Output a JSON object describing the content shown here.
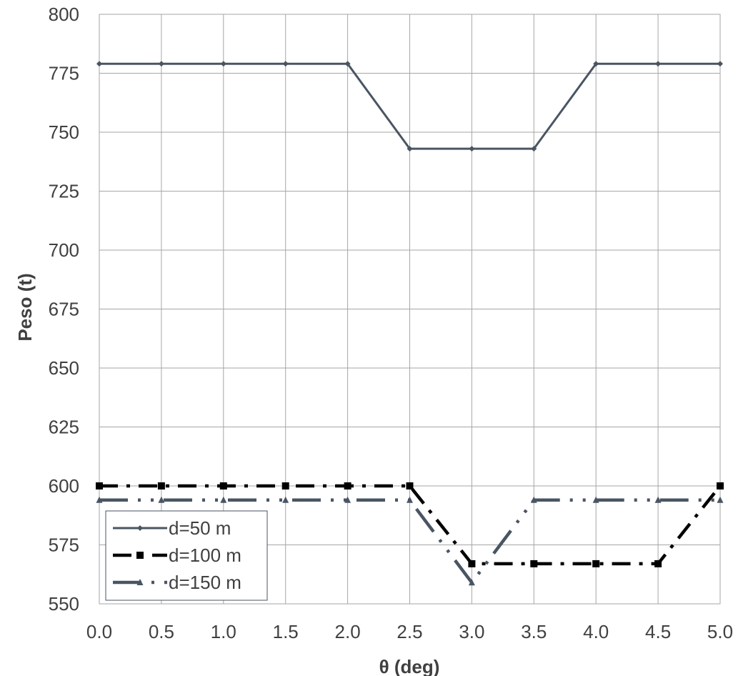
{
  "chart_data": {
    "type": "line",
    "title": "",
    "xlabel": "θ (deg)",
    "ylabel": "Peso (t)",
    "x": [
      0.0,
      0.5,
      1.0,
      1.5,
      2.0,
      2.5,
      3.0,
      3.5,
      4.0,
      4.5,
      5.0
    ],
    "x_tick_labels": [
      "0.0",
      "0.5",
      "1.0",
      "1.5",
      "2.0",
      "2.5",
      "3.0",
      "3.5",
      "4.0",
      "4.5",
      "5.0"
    ],
    "xlim": [
      0,
      5
    ],
    "ylim": [
      550,
      800
    ],
    "y_ticks": [
      550,
      575,
      600,
      625,
      650,
      675,
      700,
      725,
      750,
      775,
      800
    ],
    "grid": true,
    "legend_position": "bottom-left",
    "series": [
      {
        "name": "d=50 m",
        "color": "#4a5563",
        "dash": "solid",
        "marker": "diamond",
        "values": [
          779,
          779,
          779,
          779,
          779,
          743,
          743,
          743,
          779,
          779,
          779
        ]
      },
      {
        "name": "d=100 m",
        "color": "#000000",
        "dash": "dash-dot",
        "marker": "square",
        "values": [
          600,
          600,
          600,
          600,
          600,
          600,
          567,
          567,
          567,
          567,
          600
        ]
      },
      {
        "name": "d=150 m",
        "color": "#4a5563",
        "dash": "long-dash-dot-dot",
        "marker": "triangle",
        "values": [
          594,
          594,
          594,
          594,
          594,
          594,
          559,
          594,
          594,
          594,
          594
        ]
      }
    ]
  }
}
